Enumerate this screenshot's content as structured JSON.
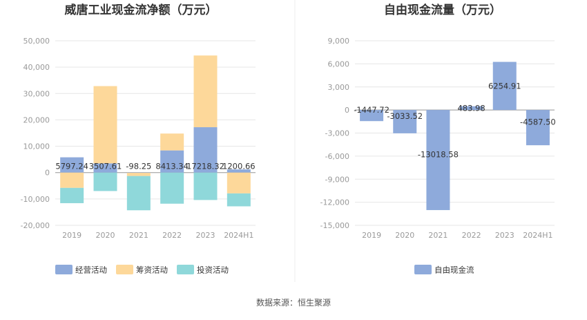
{
  "source_label": "数据来源：恒生聚源",
  "chart_data": [
    {
      "type": "bar",
      "stacked": true,
      "title": "威唐工业现金流净额（万元）",
      "categories": [
        "2019",
        "2020",
        "2021",
        "2022",
        "2023",
        "2024H1"
      ],
      "ylim": [
        -20000,
        50000
      ],
      "yticks": [
        -20000,
        -10000,
        0,
        10000,
        20000,
        30000,
        40000,
        50000
      ],
      "ytick_labels": [
        "-20,000",
        "-10,000",
        "0",
        "10,000",
        "20,000",
        "30,000",
        "40,000",
        "50,000"
      ],
      "grid": true,
      "legend_position": "bottom",
      "series": [
        {
          "name": "经营活动",
          "color": "#8eaadb",
          "values": [
            5797.24,
            3507.61,
            -98.25,
            8413.34,
            17218.32,
            1200.66
          ]
        },
        {
          "name": "筹资活动",
          "color": "#fdd89a",
          "values": [
            -5800,
            29300,
            -1200,
            6400,
            27200,
            -7900
          ]
        },
        {
          "name": "投资活动",
          "color": "#8fd8da",
          "values": [
            -5800,
            -7000,
            -13000,
            -11800,
            -10400,
            -4900
          ]
        }
      ],
      "data_labels": [
        "5797.24",
        "3507.61",
        "-98.25",
        "8413.34",
        "17218.32",
        "1200.66"
      ]
    },
    {
      "type": "bar",
      "waterfall": true,
      "title": "自由现金流量（万元）",
      "categories": [
        "2019",
        "2020",
        "2021",
        "2022",
        "2023",
        "2024H1"
      ],
      "ylim": [
        -15000,
        9000
      ],
      "yticks": [
        -15000,
        -12000,
        -9000,
        -6000,
        -3000,
        0,
        3000,
        6000,
        9000
      ],
      "ytick_labels": [
        "-15,000",
        "-12,000",
        "-9,000",
        "-6,000",
        "-3,000",
        "0",
        "3,000",
        "6,000",
        "9,000"
      ],
      "grid": true,
      "legend_position": "bottom",
      "series": [
        {
          "name": "自由现金流",
          "color": "#8eaadb",
          "values": [
            -1447.72,
            -3033.52,
            -13018.58,
            483.98,
            6254.91,
            -4587.5
          ]
        }
      ],
      "data_labels": [
        "-1447.72",
        "-3033.52",
        "-13018.58",
        "483.98",
        "6254.91",
        "-4587.50"
      ]
    }
  ]
}
